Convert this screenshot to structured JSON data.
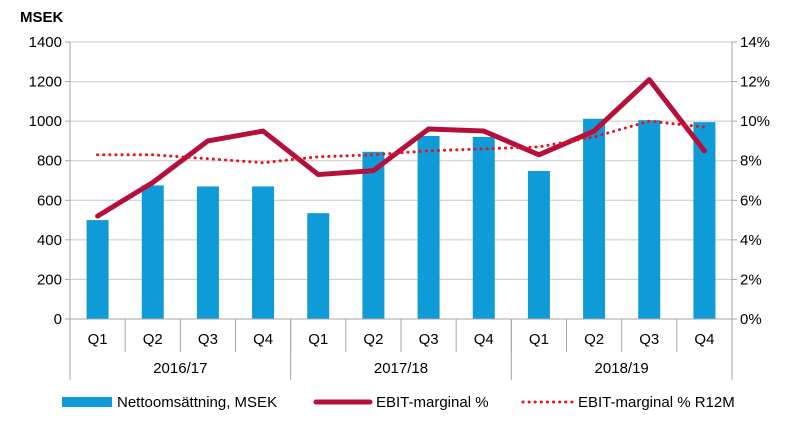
{
  "chart_data": {
    "type": "bar",
    "unit_label": "MSEK",
    "categories": [
      "Q1",
      "Q2",
      "Q3",
      "Q4",
      "Q1",
      "Q2",
      "Q3",
      "Q4",
      "Q1",
      "Q2",
      "Q3",
      "Q4"
    ],
    "groups": [
      {
        "label": "2016/17",
        "count": 4
      },
      {
        "label": "2017/18",
        "count": 4
      },
      {
        "label": "2018/19",
        "count": 4
      }
    ],
    "y_left": {
      "min": 0,
      "max": 1400,
      "step": 200,
      "ticks": [
        "0",
        "200",
        "400",
        "600",
        "800",
        "1000",
        "1200",
        "1400"
      ]
    },
    "y_right": {
      "min": 0,
      "max": 14,
      "step": 2,
      "ticks": [
        "0%",
        "2%",
        "4%",
        "6%",
        "8%",
        "10%",
        "12%",
        "14%"
      ]
    },
    "grid": true,
    "legend_position": "bottom",
    "series": [
      {
        "name": "Nettoomsättning, MSEK",
        "type": "bar",
        "axis": "left",
        "color": "#0f9bd7",
        "values": [
          500,
          675,
          670,
          670,
          535,
          845,
          925,
          920,
          748,
          1012,
          1005,
          995
        ]
      },
      {
        "name": "EBIT-marginal %",
        "type": "line",
        "axis": "right",
        "color": "#b5103c",
        "values": [
          5.2,
          6.9,
          9.0,
          9.5,
          7.3,
          7.5,
          9.6,
          9.5,
          8.3,
          9.5,
          12.1,
          8.5
        ]
      },
      {
        "name": "EBIT-marginal % R12M",
        "type": "dotted-line",
        "axis": "right",
        "color": "#e8141c",
        "values": [
          8.3,
          8.3,
          8.1,
          7.9,
          8.2,
          8.3,
          8.5,
          8.6,
          8.7,
          9.2,
          10.0,
          9.7
        ]
      }
    ]
  }
}
